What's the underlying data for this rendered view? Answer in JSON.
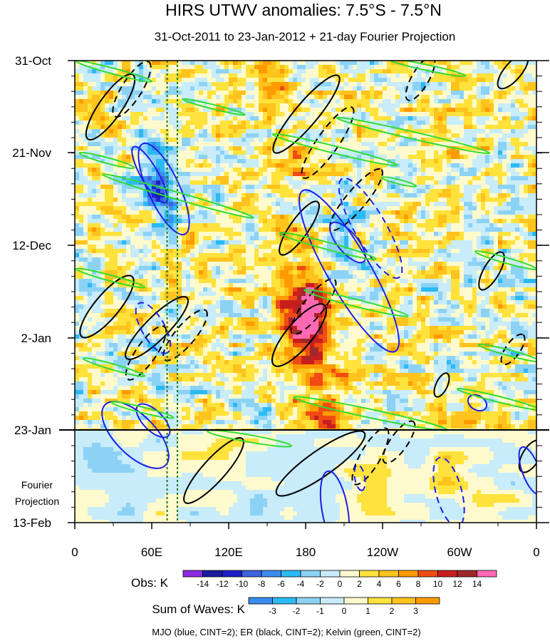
{
  "chart_data": {
    "type": "heatmap",
    "title": "HIRS UTWV anomalies: 7.5°S - 7.5°N",
    "subtitle": "31-Oct-2011 to 23-Jan-2012 + 21-day Fourier Projection",
    "x_axis": {
      "ticks": [
        "0",
        "60E",
        "120E",
        "180",
        "120W",
        "60W",
        "0"
      ],
      "range_deg_east": [
        0,
        360
      ]
    },
    "y_axis": {
      "ticks": [
        "31-Oct",
        "21-Nov",
        "12-Dec",
        "2-Jan",
        "23-Jan",
        "13-Feb"
      ],
      "projection_label": [
        "Fourier",
        "Projection"
      ]
    },
    "reference_lines": [
      {
        "label": "23-Jan",
        "kind": "end of observations"
      },
      {
        "lon": 72,
        "kind": "dotted green"
      },
      {
        "lon": 80,
        "kind": "dotted green"
      }
    ],
    "obs_colorbar": {
      "label": "Obs: K",
      "levels": [
        "-14",
        "-12",
        "-10",
        "-8",
        "-6",
        "-4",
        "-2",
        "0",
        "2",
        "4",
        "6",
        "8",
        "10",
        "12",
        "14"
      ],
      "colors": [
        "#8a2be2",
        "#1a1aa0",
        "#1e1ec8",
        "#3c64dc",
        "#3c8cf0",
        "#2cbaf5",
        "#8cd2f5",
        "#c8ecfa",
        "#fffacd",
        "#ffe23c",
        "#ffc31e",
        "#ff9b00",
        "#f04b14",
        "#c81e1e",
        "#a02828",
        "#ff69b4"
      ]
    },
    "waves_colorbar": {
      "label": "Sum of Waves: K",
      "levels": [
        "-3",
        "-2",
        "-1",
        "0",
        "1",
        "2",
        "3"
      ],
      "colors": [
        "#3c8cf0",
        "#2cbaf5",
        "#8cd2f5",
        "#c8ecfa",
        "#fffacd",
        "#ffe23c",
        "#ffc31e",
        "#ff9b00"
      ]
    },
    "contour_legend": "MJO (blue, CINT=2); ER (black, CINT=2); Kelvin (green, CINT=2)",
    "contour_colors": {
      "mjo": "#1e1ee6",
      "er": "#000000",
      "kelvin": "#32dc32"
    },
    "features": [
      {
        "name": "warm anomaly near dateline",
        "lon": 180,
        "date": "late Dec",
        "value": 14
      },
      {
        "name": "cold anomaly Indian Ocean",
        "lon": 65,
        "date": "late Nov",
        "value": -12
      },
      {
        "name": "warm band central Pacific",
        "lon": 190,
        "date": "mid Jan",
        "value": 6
      }
    ]
  }
}
